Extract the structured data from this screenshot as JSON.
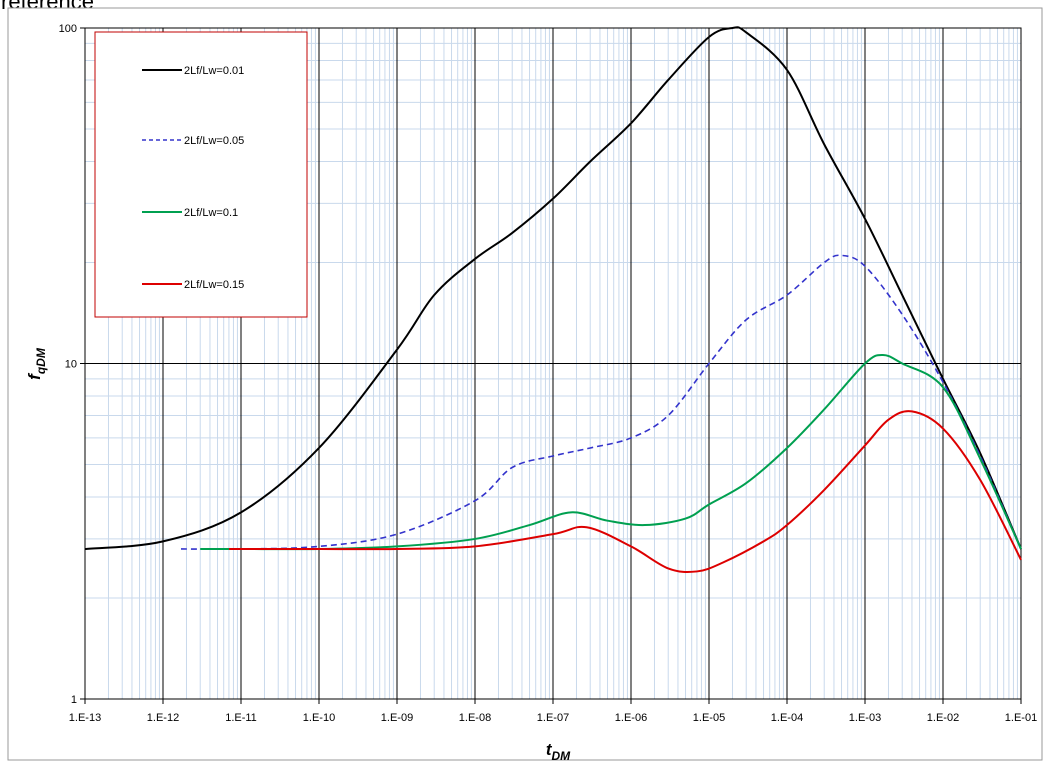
{
  "caption": "reference",
  "chart_data": {
    "type": "line",
    "xscale": "log",
    "yscale": "log",
    "xlim": [
      1e-13,
      0.1
    ],
    "ylim": [
      1,
      100
    ],
    "xlabel": {
      "main": "t",
      "sub": "DM"
    },
    "ylabel": {
      "main": "f",
      "sub": "qDM"
    },
    "grid": true,
    "legend_position": "top-left",
    "x_tick_labels": [
      "1.E-13",
      "1.E-12",
      "1.E-11",
      "1.E-10",
      "1.E-09",
      "1.E-08",
      "1.E-07",
      "1.E-06",
      "1.E-05",
      "1.E-04",
      "1.E-03",
      "1.E-02",
      "1.E-01"
    ],
    "y_tick_labels": [
      "1",
      "10",
      "100"
    ],
    "series": [
      {
        "name": "2Lf/Lw=0.01",
        "color": "#000000",
        "dash": "",
        "x": [
          1e-13,
          1e-12,
          1e-11,
          1e-10,
          1e-09,
          3e-09,
          1e-08,
          3e-08,
          1e-07,
          3e-07,
          1e-06,
          3e-06,
          1e-05,
          2e-05,
          3e-05,
          0.0001,
          0.0003,
          0.001,
          0.003,
          0.01,
          0.03,
          0.1
        ],
        "y": [
          2.8,
          2.95,
          3.6,
          5.6,
          11,
          16,
          20.5,
          24.5,
          31,
          40,
          52,
          70,
          94,
          100,
          97,
          75,
          45,
          27,
          16,
          9,
          5.4,
          2.8
        ]
      },
      {
        "name": "2Lf/Lw=0.05",
        "color": "#3333CC",
        "dash": "6,4",
        "x": [
          1.7e-12,
          1e-11,
          1e-10,
          1e-09,
          1e-08,
          3e-08,
          1e-07,
          3e-07,
          1e-06,
          3e-06,
          1e-05,
          3e-05,
          0.0001,
          0.0003,
          0.0005,
          0.001,
          0.003,
          0.01,
          0.03,
          0.1
        ],
        "y": [
          2.8,
          2.8,
          2.85,
          3.1,
          3.9,
          4.9,
          5.3,
          5.6,
          6.0,
          7.0,
          10,
          13.5,
          16,
          20,
          21,
          19.5,
          14,
          8.8,
          5.3,
          2.8
        ]
      },
      {
        "name": "2Lf/Lw=0.1",
        "color": "#00A050",
        "dash": "",
        "x": [
          3e-12,
          1e-11,
          1e-10,
          1e-09,
          1e-08,
          5e-08,
          1.7e-07,
          5e-07,
          1.5e-06,
          5e-06,
          1e-05,
          3e-05,
          0.0001,
          0.0003,
          0.001,
          0.0017,
          0.003,
          0.01,
          0.03,
          0.1
        ],
        "y": [
          2.8,
          2.8,
          2.8,
          2.85,
          3.0,
          3.3,
          3.6,
          3.4,
          3.3,
          3.45,
          3.8,
          4.4,
          5.6,
          7.3,
          10,
          10.6,
          10,
          8.5,
          5.2,
          2.8
        ]
      },
      {
        "name": "2Lf/Lw=0.15",
        "color": "#DD0000",
        "dash": "",
        "x": [
          7e-12,
          1e-11,
          1e-10,
          1e-09,
          1e-08,
          1e-07,
          2.7e-07,
          1e-06,
          3e-06,
          7e-06,
          1.5e-05,
          5e-05,
          0.0001,
          0.0003,
          0.001,
          0.002,
          0.004,
          0.01,
          0.03,
          0.1
        ],
        "y": [
          2.8,
          2.8,
          2.8,
          2.8,
          2.85,
          3.1,
          3.25,
          2.85,
          2.45,
          2.4,
          2.55,
          2.95,
          3.3,
          4.2,
          5.7,
          6.8,
          7.2,
          6.4,
          4.5,
          2.6
        ]
      }
    ]
  }
}
